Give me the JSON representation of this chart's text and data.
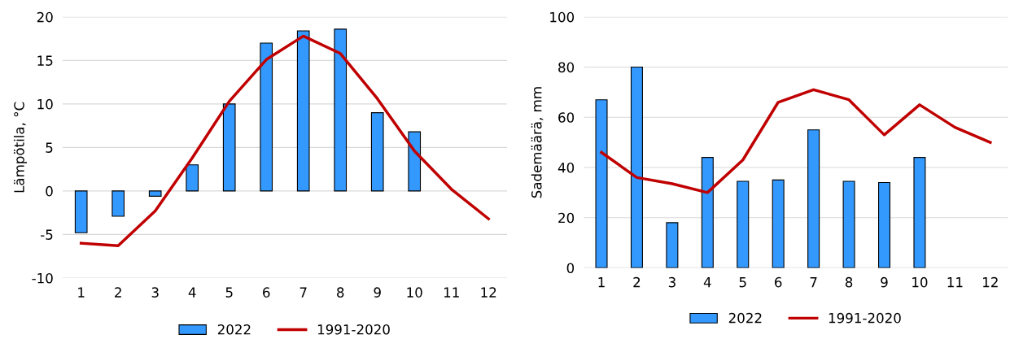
{
  "chart_data": [
    {
      "type": "bar",
      "ylabel": "Lämpötila, °C",
      "categories": [
        "1",
        "2",
        "3",
        "4",
        "5",
        "6",
        "7",
        "8",
        "9",
        "10",
        "11",
        "12"
      ],
      "series": [
        {
          "name": "2022",
          "color": "#3399ff",
          "values": [
            -4.8,
            -2.9,
            -0.6,
            3.0,
            10.0,
            17.0,
            18.4,
            18.6,
            9.0,
            6.8,
            null,
            null
          ]
        },
        {
          "name": "1991-2020",
          "type": "line",
          "color": "#c00000",
          "values": [
            -6.0,
            -6.3,
            -2.3,
            3.8,
            10.3,
            15.1,
            17.8,
            15.8,
            10.6,
            4.6,
            0.2,
            -3.2
          ]
        }
      ],
      "ylim": [
        -10,
        20
      ],
      "yticks": [
        -10,
        -5,
        0,
        5,
        10,
        15,
        20
      ],
      "grid": "y",
      "legend": "bottom"
    },
    {
      "type": "bar",
      "ylabel": "Sademäärä, mm",
      "categories": [
        "1",
        "2",
        "3",
        "4",
        "5",
        "6",
        "7",
        "8",
        "9",
        "10",
        "11",
        "12"
      ],
      "series": [
        {
          "name": "2022",
          "color": "#3399ff",
          "values": [
            67,
            80,
            18,
            44,
            34.5,
            35,
            55,
            34.5,
            34,
            44,
            null,
            null
          ]
        },
        {
          "name": "1991-2020",
          "type": "line",
          "color": "#c00000",
          "values": [
            46,
            36,
            33.5,
            30,
            43,
            66,
            71,
            67,
            53,
            65,
            56,
            50
          ]
        }
      ],
      "ylim": [
        0,
        100
      ],
      "yticks": [
        0,
        20,
        40,
        60,
        80,
        100
      ],
      "grid": "y",
      "legend": "bottom"
    }
  ]
}
